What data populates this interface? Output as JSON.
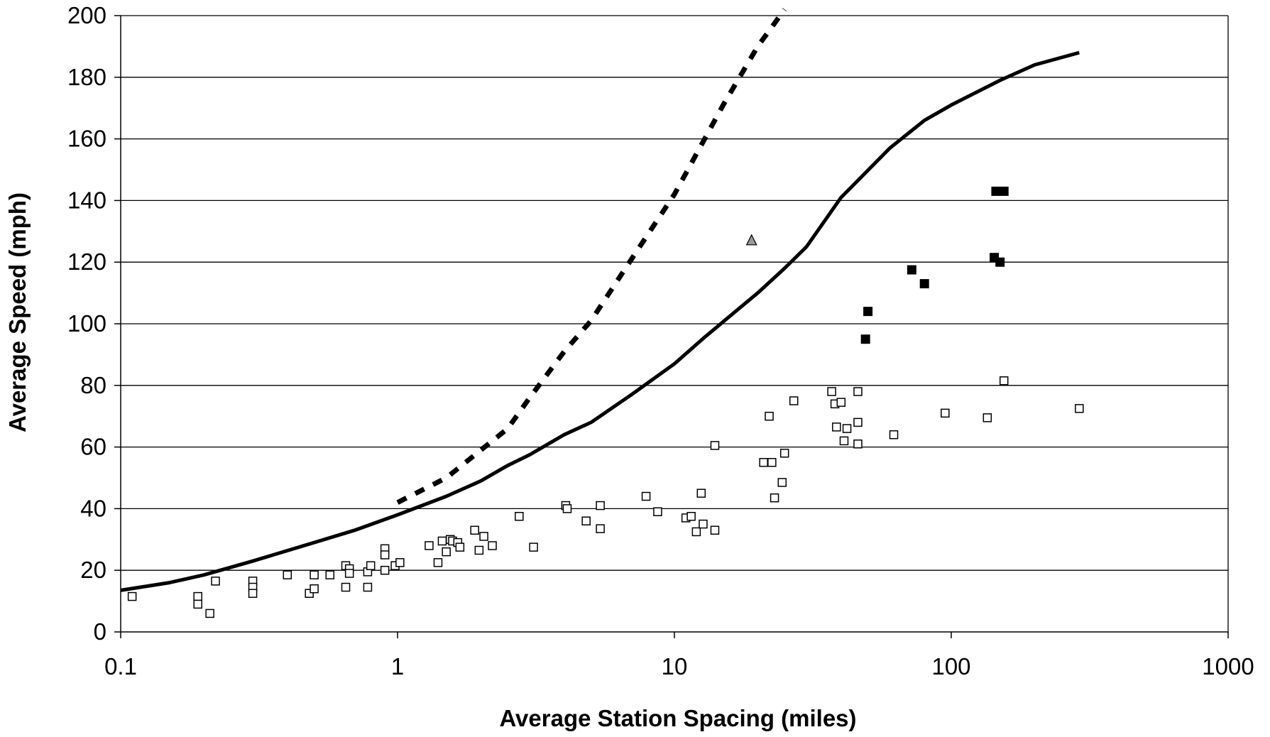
{
  "chart_data": {
    "type": "scatter",
    "title": "",
    "xlabel": "Average Station Spacing (miles)",
    "ylabel": "Average Speed (mph)",
    "x_scale": "log",
    "xlim": [
      0.1,
      1000
    ],
    "ylim": [
      0,
      200
    ],
    "x_ticks": [
      0.1,
      1,
      10,
      100,
      1000
    ],
    "x_tick_labels": [
      "0.1",
      "1",
      "10",
      "100",
      "1000"
    ],
    "y_ticks": [
      0,
      20,
      40,
      60,
      80,
      100,
      120,
      140,
      160,
      180,
      200
    ],
    "y_tick_labels": [
      "0",
      "20",
      "40",
      "60",
      "80",
      "100",
      "120",
      "140",
      "160",
      "180",
      "200"
    ],
    "grid": "horizontal",
    "legend": "none",
    "colors": {
      "axis": "#000000",
      "grid": "#000000",
      "line": "#000000",
      "open_marker_fill": "#ffffff",
      "filled_marker_fill": "#000000",
      "triangle_fill": "#9a9a9a"
    },
    "series": [
      {
        "kind": "line",
        "style": "solid",
        "points": [
          [
            0.1,
            13.5
          ],
          [
            0.15,
            16
          ],
          [
            0.2,
            18.5
          ],
          [
            0.3,
            23
          ],
          [
            0.5,
            29
          ],
          [
            0.7,
            33
          ],
          [
            1,
            38
          ],
          [
            1.5,
            44
          ],
          [
            2,
            49
          ],
          [
            2.5,
            54
          ],
          [
            3,
            57.5
          ],
          [
            4,
            64
          ],
          [
            5,
            68
          ],
          [
            7,
            77
          ],
          [
            10,
            87
          ],
          [
            13,
            96
          ],
          [
            20,
            110
          ],
          [
            25,
            118
          ],
          [
            30,
            125
          ],
          [
            40,
            141
          ],
          [
            60,
            157
          ],
          [
            80,
            166
          ],
          [
            100,
            171
          ],
          [
            150,
            179
          ],
          [
            200,
            184
          ],
          [
            290,
            188
          ]
        ]
      },
      {
        "kind": "line",
        "style": "dashed",
        "points": [
          [
            1,
            42
          ],
          [
            1.5,
            50
          ],
          [
            2,
            59
          ],
          [
            2.5,
            66
          ],
          [
            3,
            76
          ],
          [
            4,
            91
          ],
          [
            5,
            101
          ],
          [
            7,
            121
          ],
          [
            10,
            142
          ],
          [
            15,
            171
          ],
          [
            20,
            190
          ],
          [
            25,
            202
          ]
        ]
      },
      {
        "kind": "scatter",
        "marker": "open-square",
        "points": [
          [
            0.11,
            11.5
          ],
          [
            0.19,
            11.5
          ],
          [
            0.19,
            9
          ],
          [
            0.21,
            6
          ],
          [
            0.22,
            16.5
          ],
          [
            0.3,
            16.5
          ],
          [
            0.3,
            14.5
          ],
          [
            0.3,
            12.5
          ],
          [
            0.4,
            18.5
          ],
          [
            0.48,
            12.5
          ],
          [
            0.5,
            14
          ],
          [
            0.5,
            18.5
          ],
          [
            0.57,
            18.5
          ],
          [
            0.65,
            21.5
          ],
          [
            0.65,
            14.5
          ],
          [
            0.67,
            20.5
          ],
          [
            0.67,
            19
          ],
          [
            0.78,
            19.5
          ],
          [
            0.78,
            14.5
          ],
          [
            0.8,
            21.5
          ],
          [
            0.9,
            27
          ],
          [
            0.9,
            25
          ],
          [
            0.9,
            20
          ],
          [
            0.98,
            21.5
          ],
          [
            1.02,
            22.5
          ],
          [
            1.3,
            28
          ],
          [
            1.4,
            22.5
          ],
          [
            1.45,
            29.5
          ],
          [
            1.5,
            26
          ],
          [
            1.55,
            30
          ],
          [
            1.58,
            29.5
          ],
          [
            1.65,
            29
          ],
          [
            1.68,
            27.5
          ],
          [
            1.9,
            33
          ],
          [
            1.97,
            26.5
          ],
          [
            2.05,
            31
          ],
          [
            2.2,
            28
          ],
          [
            2.75,
            37.5
          ],
          [
            3.1,
            27.5
          ],
          [
            4.05,
            41
          ],
          [
            4.1,
            40
          ],
          [
            4.8,
            36
          ],
          [
            5.4,
            41
          ],
          [
            5.4,
            33.5
          ],
          [
            7.9,
            44
          ],
          [
            8.7,
            39
          ],
          [
            11,
            37
          ],
          [
            11.5,
            37.5
          ],
          [
            12,
            32.5
          ],
          [
            12.5,
            45
          ],
          [
            12.7,
            35
          ],
          [
            14,
            60.5
          ],
          [
            14,
            33
          ],
          [
            21,
            55
          ],
          [
            22,
            70
          ],
          [
            22.5,
            55
          ],
          [
            23,
            43.5
          ],
          [
            24.5,
            48.5
          ],
          [
            25,
            58
          ],
          [
            27,
            75
          ],
          [
            37,
            78
          ],
          [
            38,
            74
          ],
          [
            38.5,
            66.5
          ],
          [
            40,
            74.5
          ],
          [
            41,
            62
          ],
          [
            42,
            66
          ],
          [
            46,
            78
          ],
          [
            46,
            68
          ],
          [
            46,
            61
          ],
          [
            62,
            64
          ],
          [
            95,
            71
          ],
          [
            135,
            69.5
          ],
          [
            155,
            81.5
          ],
          [
            290,
            72.5
          ]
        ]
      },
      {
        "kind": "scatter",
        "marker": "filled-square",
        "points": [
          [
            49,
            95
          ],
          [
            50,
            104
          ],
          [
            72,
            117.5
          ],
          [
            80,
            113
          ],
          [
            143,
            121.5
          ],
          [
            145,
            143
          ],
          [
            150,
            120
          ],
          [
            155,
            143
          ]
        ]
      },
      {
        "kind": "scatter",
        "marker": "triangle",
        "points": [
          [
            19,
            127
          ]
        ]
      }
    ]
  }
}
